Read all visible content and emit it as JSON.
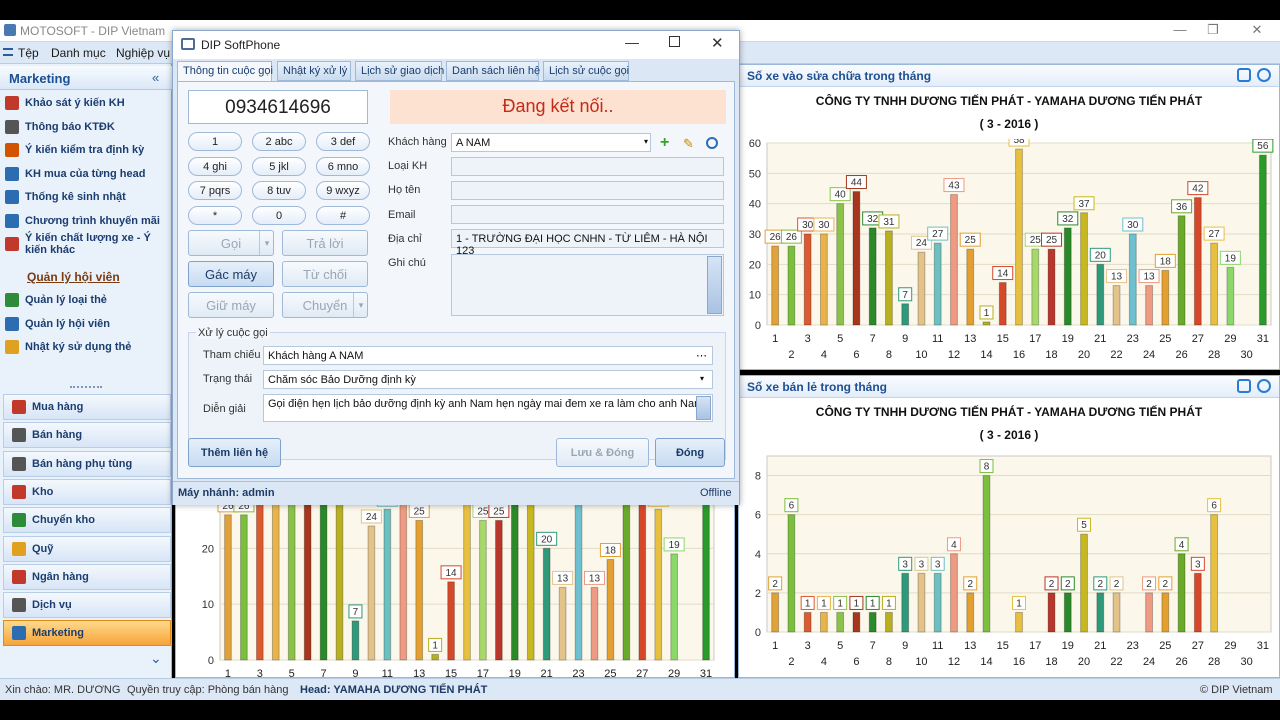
{
  "window": {
    "title": "MOTOSOFT - DIP Vietnam",
    "min": "—",
    "max": "❐",
    "close": "✕"
  },
  "menu": [
    "Tệp",
    "Danh mục",
    "Nghiệp vụ"
  ],
  "sidebar": {
    "header": "Marketing",
    "collapse": "«",
    "items": [
      {
        "label": "Khảo sát ý kiến KH",
        "color": "#c0392b"
      },
      {
        "label": "Thông báo KTĐK",
        "color": "#555555"
      },
      {
        "label": "Ý kiến kiểm tra định kỳ",
        "color": "#d35400"
      },
      {
        "label": "KH mua của từng head",
        "color": "#2c6cb0"
      },
      {
        "label": "Thống kê sinh nhật",
        "color": "#2c6cb0"
      },
      {
        "label": "Chương trình khuyến mãi",
        "color": "#2c6cb0"
      },
      {
        "label": "Ý kiến chất lượng xe - Ý kiến khác",
        "color": "#c0392b"
      }
    ],
    "link": "Quản lý hội viên",
    "items2": [
      {
        "label": "Quản lý loại thẻ",
        "color": "#2e8b3a"
      },
      {
        "label": "Quản lý hội viên",
        "color": "#2c6cb0"
      },
      {
        "label": "Nhật ký sử dụng thẻ",
        "color": "#e0a020"
      }
    ],
    "nav": [
      {
        "label": "Mua hàng",
        "color": "#c0392b"
      },
      {
        "label": "Bán hàng",
        "color": "#555555"
      },
      {
        "label": "Bán hàng phụ tùng",
        "color": "#555555"
      },
      {
        "label": "Kho",
        "color": "#c0392b"
      },
      {
        "label": "Chuyển kho",
        "color": "#2e8b3a"
      },
      {
        "label": "Quỹ",
        "color": "#e0a020"
      },
      {
        "label": "Ngân hàng",
        "color": "#c0392b"
      },
      {
        "label": "Dịch vụ",
        "color": "#555555"
      },
      {
        "label": "Marketing",
        "color": "#2c6cb0"
      }
    ],
    "active_nav": "Marketing",
    "more": "⌄"
  },
  "status": {
    "greeting": "Xin chào: MR. DƯƠNG",
    "access": "Quyền truy cập: Phòng bán hàng",
    "head": "Head: YAMAHA DƯƠNG TIẾN PHÁT",
    "copyright": "© DIP Vietnam"
  },
  "panels": {
    "top_right": {
      "title": "Số xe vào sửa chữa trong tháng"
    },
    "bottom_right": {
      "title": "Số xe bán lẻ trong tháng"
    }
  },
  "chart_data": [
    {
      "type": "bar",
      "title": "CÔNG TY TNHH DƯƠNG TIẾN PHÁT - YAMAHA DƯƠNG TIẾN PHÁT",
      "subtitle": "( 3 - 2016 )",
      "categories": [
        "1",
        "2",
        "3",
        "4",
        "5",
        "6",
        "7",
        "8",
        "9",
        "10",
        "11",
        "12",
        "13",
        "14",
        "15",
        "16",
        "17",
        "18",
        "19",
        "20",
        "21",
        "22",
        "23",
        "24",
        "25",
        "26",
        "27",
        "28",
        "29",
        "30",
        "31"
      ],
      "values": [
        26,
        26,
        30,
        30,
        40,
        44,
        32,
        31,
        7,
        24,
        27,
        43,
        25,
        1,
        14,
        58,
        25,
        25,
        32,
        37,
        20,
        13,
        30,
        13,
        18,
        36,
        42,
        27,
        19,
        0,
        56
      ],
      "ylim": [
        0,
        60
      ],
      "yticks": [
        0,
        10,
        20,
        30,
        40,
        50,
        60
      ],
      "colors": [
        "#e2a23a",
        "#7bbf3e",
        "#dc5a30",
        "#e8b44a",
        "#8bc34a",
        "#a8361e",
        "#2a8a2a",
        "#b8b020",
        "#2f9a7a",
        "#e3c38a",
        "#6dc0c0",
        "#ef9a82",
        "#e3a030",
        "#b8b020",
        "#d6482a",
        "#e8c040",
        "#a7d86a",
        "#b9362a",
        "#2a8a2a",
        "#c8b820",
        "#2f9a7a",
        "#e3c38a",
        "#6dc0d0",
        "#ef9a82",
        "#e3a030",
        "#6aaa2a",
        "#d6482a",
        "#e8c040",
        "#8bd86a",
        "#9a2a1a",
        "#2a9a2a"
      ]
    },
    {
      "type": "bar",
      "title": "CÔNG TY TNHH DƯƠNG TIẾN PHÁT - YAMAHA DƯƠNG TIẾN PHÁT",
      "subtitle": "( 3 - 2016 )",
      "categories": [
        "1",
        "2",
        "3",
        "4",
        "5",
        "6",
        "7",
        "8",
        "9",
        "10",
        "11",
        "12",
        "13",
        "14",
        "15",
        "16",
        "17",
        "18",
        "19",
        "20",
        "21",
        "22",
        "23",
        "24",
        "25",
        "26",
        "27",
        "28",
        "29",
        "30",
        "31"
      ],
      "values": [
        2,
        6,
        1,
        1,
        1,
        1,
        1,
        1,
        3,
        3,
        3,
        4,
        2,
        8,
        0,
        1,
        0,
        2,
        2,
        5,
        2,
        2,
        0,
        2,
        2,
        4,
        3,
        6,
        0,
        0,
        0
      ],
      "ylim": [
        0,
        9
      ],
      "yticks": [
        0,
        2,
        4,
        6,
        8
      ],
      "colors": [
        "#e2a23a",
        "#7bbf3e",
        "#dc5a30",
        "#e8b44a",
        "#8bc34a",
        "#a8361e",
        "#2a8a2a",
        "#b8b020",
        "#2f9a7a",
        "#e3c38a",
        "#6dc0c0",
        "#ef9a82",
        "#e3a030",
        "#7bbf3e",
        "#d6482a",
        "#e8c040",
        "#a7d86a",
        "#b9362a",
        "#2a8a2a",
        "#c8b820",
        "#2f9a7a",
        "#e3c38a",
        "#6dc0d0",
        "#ef9a82",
        "#e3a030",
        "#6aaa2a",
        "#d6482a",
        "#e8c040",
        "#8bd86a",
        "#9a2a1a",
        "#2a9a2a"
      ]
    }
  ],
  "dialog": {
    "title": "DIP SoftPhone",
    "tabs": [
      "Thông tin cuộc gọi",
      "Nhật ký xử lý",
      "Lịch sử giao dịch",
      "Danh sách liên hệ",
      "Lịch sử cuộc gọi"
    ],
    "phone": "0934614696",
    "keys": [
      "1",
      "2 abc",
      "3 def",
      "4 ghi",
      "5 jkl",
      "6 mno",
      "7 pqrs",
      "8 tuv",
      "9 wxyz",
      "*",
      "0",
      "#"
    ],
    "buttons": {
      "call": "Gọi",
      "answer": "Trả lời",
      "hangup": "Gác máy",
      "reject": "Từ chối",
      "hold": "Giữ máy",
      "transfer": "Chuyển"
    },
    "status": "Đang kết nối..",
    "fields": {
      "customer_label": "Khách hàng",
      "customer": "A NAM",
      "type_label": "Loại KH",
      "type": "",
      "name_label": "Họ tên",
      "name": "",
      "email_label": "Email",
      "email": "",
      "address_label": "Địa chỉ",
      "address": "1 - TRƯỜNG ĐẠI HỌC CNHN - TỪ LIÊM - HÀ NỘI 123",
      "note_label": "Ghi chú",
      "note": ""
    },
    "process": {
      "title": "Xử lý cuộc gọi",
      "ref_label": "Tham chiếu",
      "ref": "Khách hàng A NAM",
      "state_label": "Trạng thái",
      "state": "Chăm sóc Bảo Dưỡng định kỳ",
      "desc_label": "Diễn giải",
      "desc": "Gọi điện hẹn lịch bảo dưỡng định kỳ anh Nam hẹn ngày mai đem xe ra làm cho anh Nam"
    },
    "add_contact": "Thêm liên hệ",
    "save_close": "Lưu & Đóng",
    "close": "Đóng",
    "footer_left": "Máy nhánh: admin",
    "footer_right": "Offline"
  }
}
